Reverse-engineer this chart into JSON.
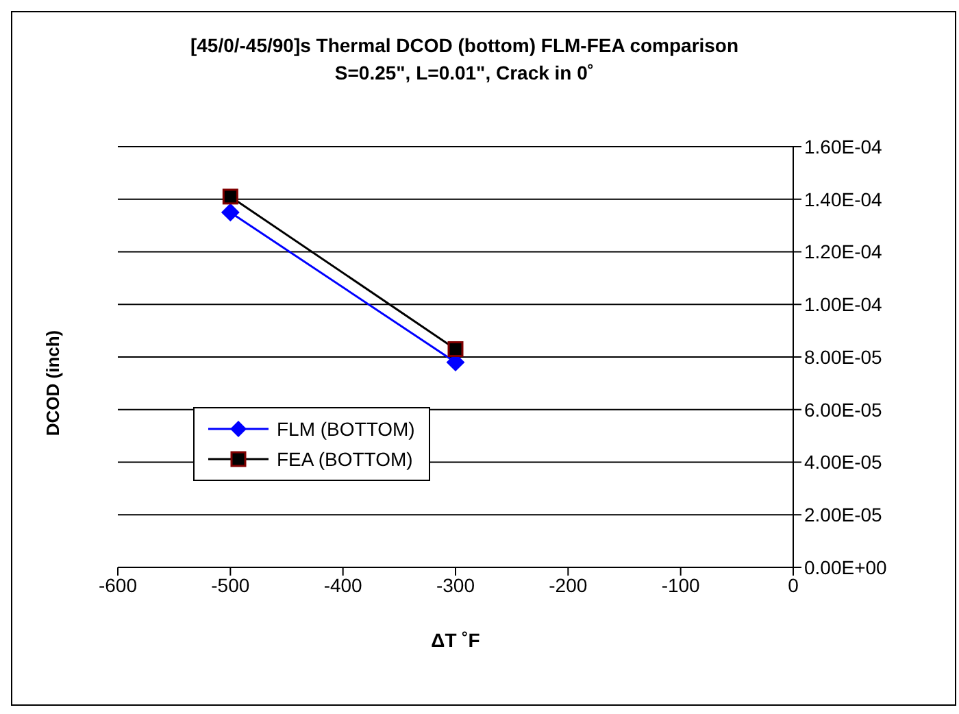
{
  "chart_data": {
    "type": "line",
    "title": "[45/0/-45/90]s Thermal DCOD (bottom) FLM-FEA comparison",
    "subtitle": "S=0.25\", L=0.01\", Crack in 0˚",
    "xlabel": "ΔT ˚F",
    "ylabel": "DCOD (inch)",
    "x": [
      -500,
      -300
    ],
    "series": [
      {
        "name": "FLM (BOTTOM)",
        "color": "#0000ff",
        "marker": "diamond",
        "values": [
          0.000135,
          7.8e-05
        ]
      },
      {
        "name": "FEA (BOTTOM)",
        "color": "#000000",
        "marker": "square",
        "values": [
          0.000141,
          8.3e-05
        ]
      }
    ],
    "xlim": [
      -600,
      0
    ],
    "xticks": [
      -600,
      -500,
      -400,
      -300,
      -200,
      -100,
      0
    ],
    "ylim": [
      0,
      0.00016
    ],
    "yticks": [
      {
        "value": 0,
        "label": "0.00E+00"
      },
      {
        "value": 2e-05,
        "label": "2.00E-05"
      },
      {
        "value": 4e-05,
        "label": "4.00E-05"
      },
      {
        "value": 6e-05,
        "label": "6.00E-05"
      },
      {
        "value": 8e-05,
        "label": "8.00E-05"
      },
      {
        "value": 0.0001,
        "label": "1.00E-04"
      },
      {
        "value": 0.00012,
        "label": "1.20E-04"
      },
      {
        "value": 0.00014,
        "label": "1.40E-04"
      },
      {
        "value": 0.00016,
        "label": "1.60E-04"
      }
    ],
    "grid": "y",
    "legend": "bottom left",
    "line_style": "solid"
  }
}
